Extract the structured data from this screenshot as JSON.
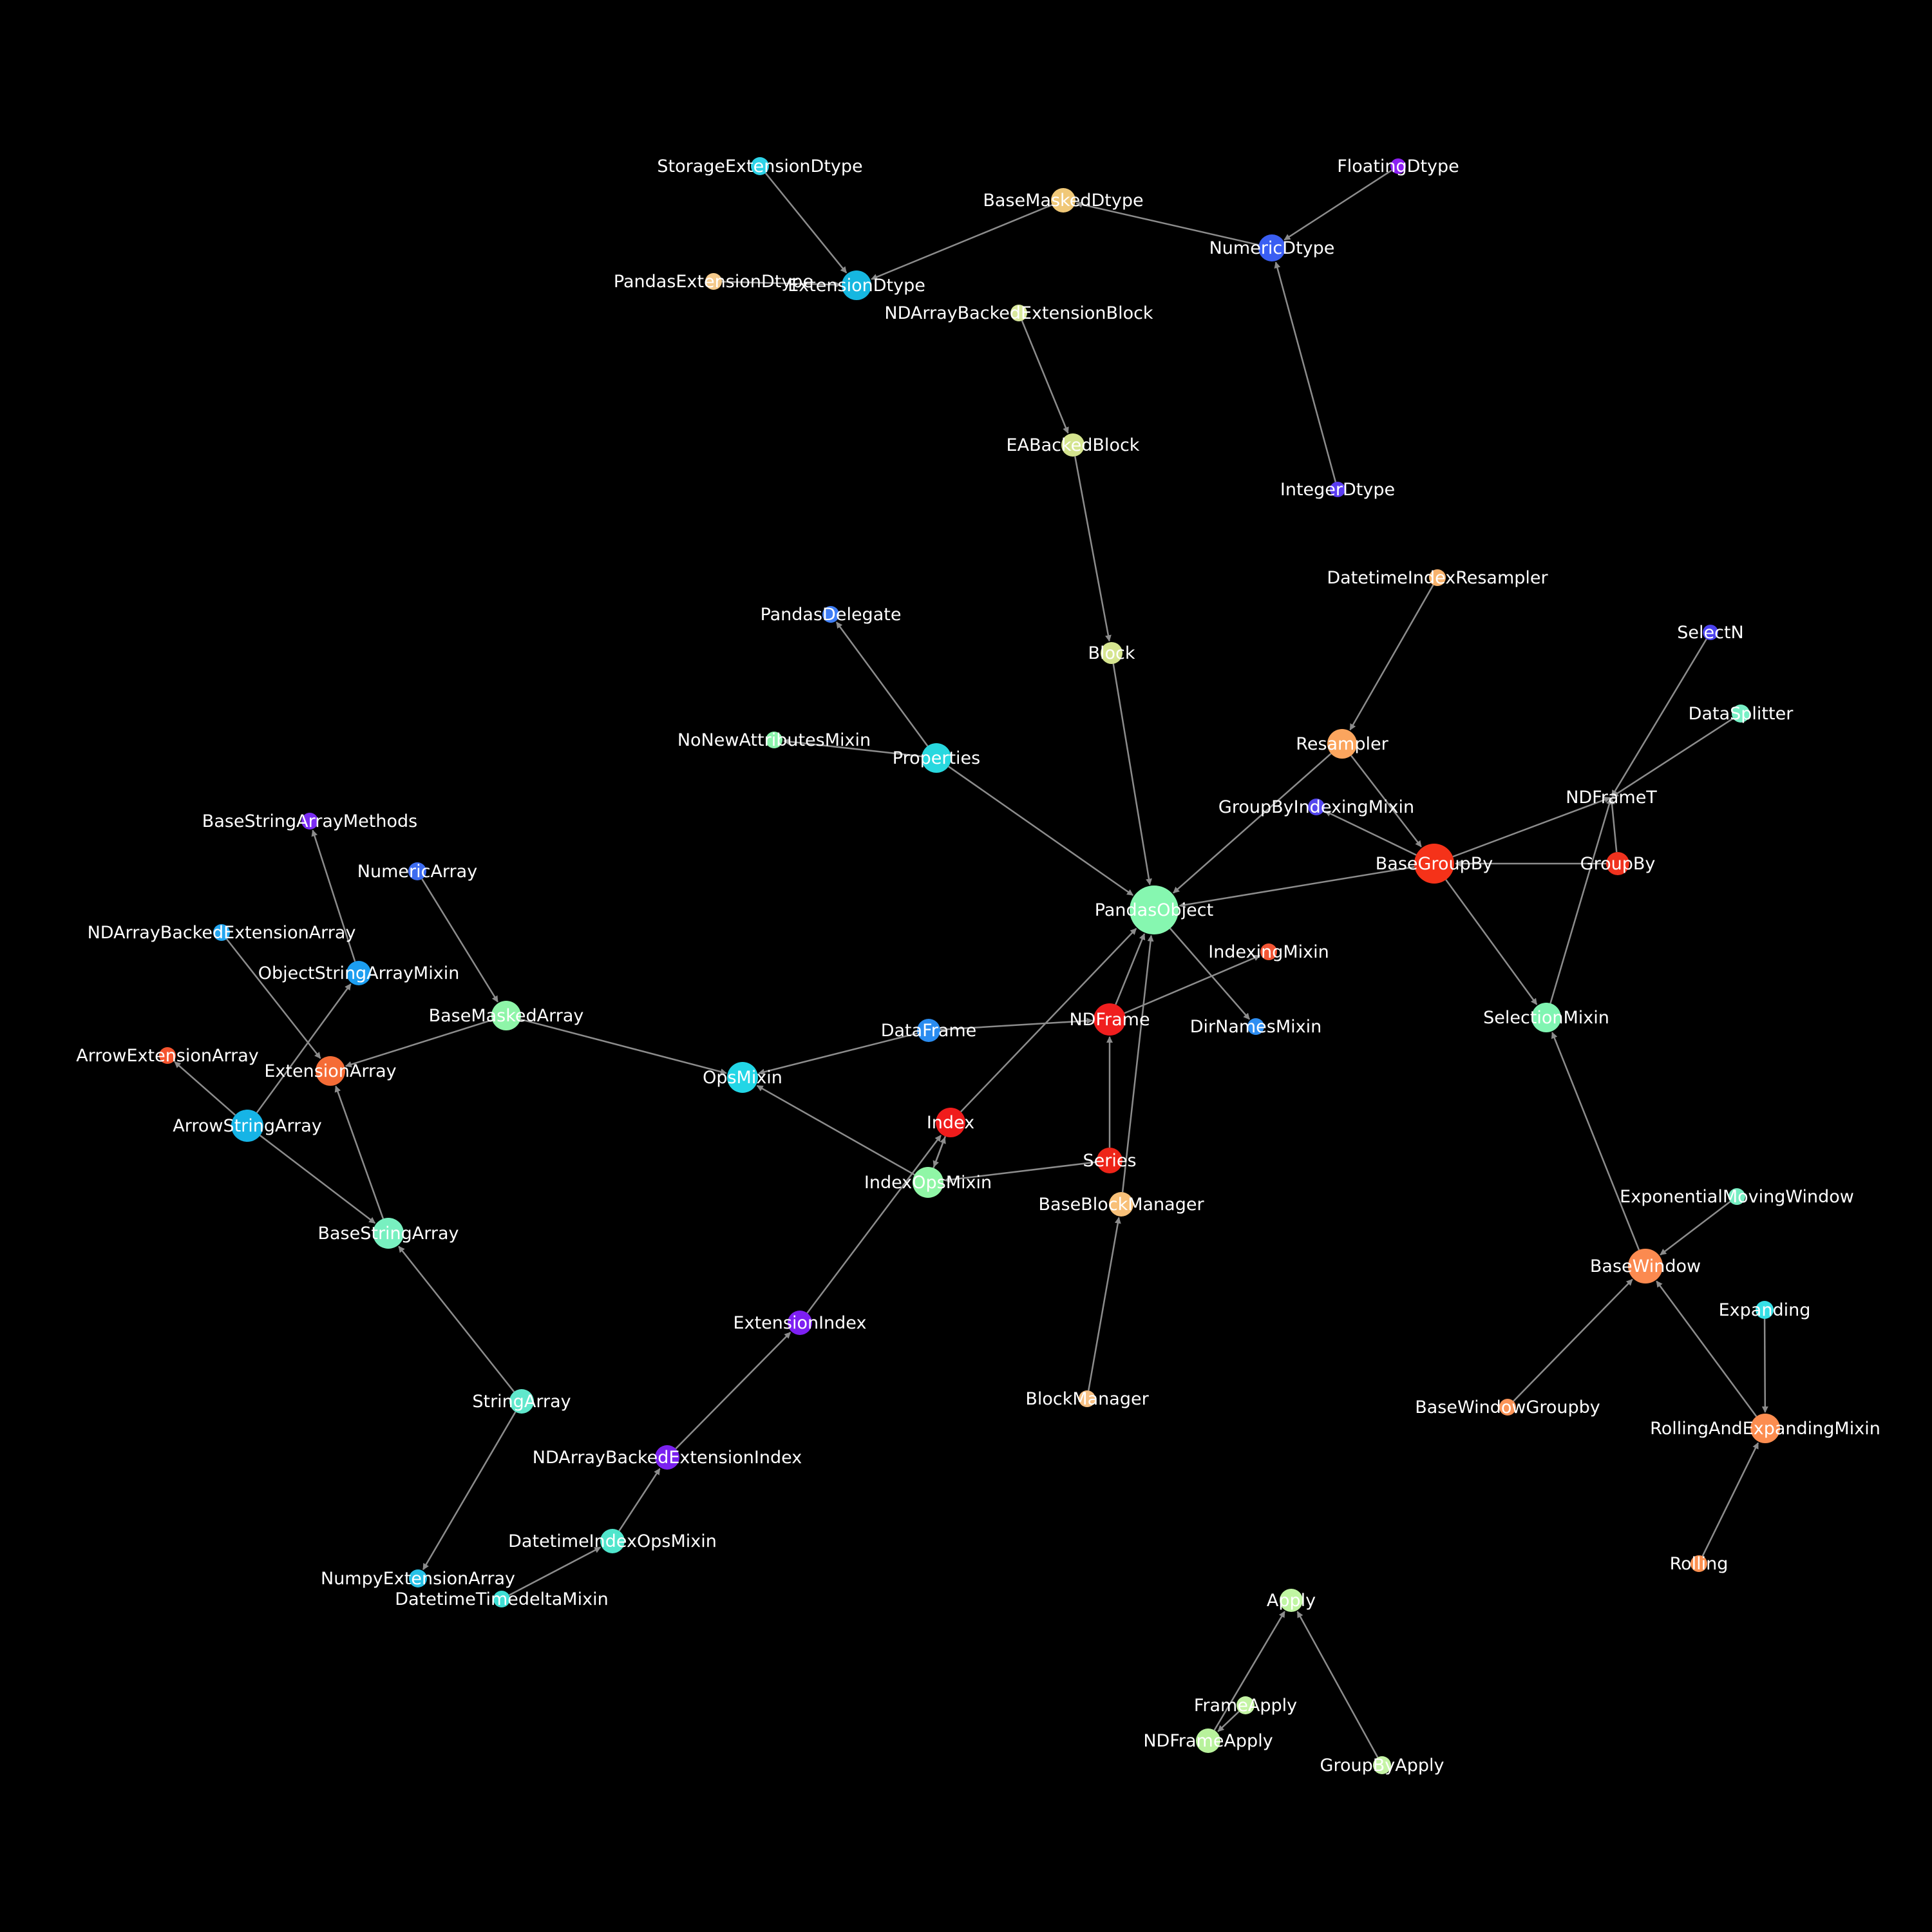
{
  "background": "#000000",
  "edge_color": "#8c8c8c",
  "label_color": "#ffffff",
  "nodes": [
    {
      "id": "StorageExtensionDtype",
      "label": "StorageExtensionDtype",
      "color": "#2ed3e8"
    },
    {
      "id": "BaseMaskedDtype",
      "label": "BaseMaskedDtype",
      "color": "#f0c878"
    },
    {
      "id": "FloatingDtype",
      "label": "FloatingDtype",
      "color": "#8b1ff2"
    },
    {
      "id": "NumericDtype",
      "label": "NumericDtype",
      "color": "#3a5ef2"
    },
    {
      "id": "PandasExtensionDtype",
      "label": "PandasExtensionDtype",
      "color": "#f4c98a"
    },
    {
      "id": "ExtensionDtype",
      "label": "ExtensionDtype",
      "color": "#16b7e0"
    },
    {
      "id": "NDArrayBackedExtensionBlock",
      "label": "NDArrayBackedExtensionBlock",
      "color": "#d9e89c"
    },
    {
      "id": "EABackedBlock",
      "label": "EABackedBlock",
      "color": "#d4e48e"
    },
    {
      "id": "IntegerDtype",
      "label": "IntegerDtype",
      "color": "#5a3cf0"
    },
    {
      "id": "DatetimeIndexResampler",
      "label": "DatetimeIndexResampler",
      "color": "#f8b26c"
    },
    {
      "id": "PandasDelegate",
      "label": "PandasDelegate",
      "color": "#3f7ef5"
    },
    {
      "id": "Block",
      "label": "Block",
      "color": "#d6e58f"
    },
    {
      "id": "SelectN",
      "label": "SelectN",
      "color": "#4b42ef"
    },
    {
      "id": "DataSplitter",
      "label": "DataSplitter",
      "color": "#78f0c6"
    },
    {
      "id": "NoNewAttributesMixin",
      "label": "NoNewAttributesMixin",
      "color": "#8cf5ad"
    },
    {
      "id": "Properties",
      "label": "Properties",
      "color": "#28d8df"
    },
    {
      "id": "Resampler",
      "label": "Resampler",
      "color": "#fba55e"
    },
    {
      "id": "NDFrameT",
      "label": "NDFrameT",
      "color": "#ffffff"
    },
    {
      "id": "GroupByIndexingMixin",
      "label": "GroupByIndexingMixin",
      "color": "#5346ee"
    },
    {
      "id": "BaseGroupBy",
      "label": "BaseGroupBy",
      "color": "#f53219"
    },
    {
      "id": "GroupBy",
      "label": "GroupBy",
      "color": "#f0321e"
    },
    {
      "id": "BaseStringArrayMethods",
      "label": "BaseStringArrayMethods",
      "color": "#7a2cf2"
    },
    {
      "id": "NumericArray",
      "label": "NumericArray",
      "color": "#3d6cf0"
    },
    {
      "id": "PandasObject",
      "label": "PandasObject",
      "color": "#86f7b0"
    },
    {
      "id": "NDArrayBackedExtensionArray",
      "label": "NDArrayBackedExtensionArray",
      "color": "#24a6f0"
    },
    {
      "id": "IndexingMixin",
      "label": "IndexingMixin",
      "color": "#f35534"
    },
    {
      "id": "ObjectStringArrayMixin",
      "label": "ObjectStringArrayMixin",
      "color": "#1c9ef0"
    },
    {
      "id": "BaseMaskedArray",
      "label": "BaseMaskedArray",
      "color": "#8ef5a8"
    },
    {
      "id": "NDFrame",
      "label": "NDFrame",
      "color": "#f01e1e"
    },
    {
      "id": "DirNamesMixin",
      "label": "DirNamesMixin",
      "color": "#2e8ef2"
    },
    {
      "id": "SelectionMixin",
      "label": "SelectionMixin",
      "color": "#80f5b2"
    },
    {
      "id": "DataFrame",
      "label": "DataFrame",
      "color": "#2a8cf0"
    },
    {
      "id": "ArrowExtensionArray",
      "label": "ArrowExtensionArray",
      "color": "#f5542e"
    },
    {
      "id": "ExtensionArray",
      "label": "ExtensionArray",
      "color": "#f56c36"
    },
    {
      "id": "OpsMixin",
      "label": "OpsMixin",
      "color": "#22d6e6"
    },
    {
      "id": "ArrowStringArray",
      "label": "ArrowStringArray",
      "color": "#16b4e6"
    },
    {
      "id": "Index",
      "label": "Index",
      "color": "#f01c1c"
    },
    {
      "id": "Series",
      "label": "Series",
      "color": "#ee2418"
    },
    {
      "id": "IndexOpsMixin",
      "label": "IndexOpsMixin",
      "color": "#90f6a6"
    },
    {
      "id": "BaseBlockManager",
      "label": "BaseBlockManager",
      "color": "#f8c078"
    },
    {
      "id": "ExponentialMovingWindow",
      "label": "ExponentialMovingWindow",
      "color": "#76eec2"
    },
    {
      "id": "BaseStringArray",
      "label": "BaseStringArray",
      "color": "#78f0c0"
    },
    {
      "id": "BaseWindow",
      "label": "BaseWindow",
      "color": "#fb8a50"
    },
    {
      "id": "Expanding",
      "label": "Expanding",
      "color": "#36e0e6"
    },
    {
      "id": "ExtensionIndex",
      "label": "ExtensionIndex",
      "color": "#7d1ff2"
    },
    {
      "id": "StringArray",
      "label": "StringArray",
      "color": "#60e8cc"
    },
    {
      "id": "BlockManager",
      "label": "BlockManager",
      "color": "#f8c184"
    },
    {
      "id": "BaseWindowGroupby",
      "label": "BaseWindowGroupby",
      "color": "#fb9458"
    },
    {
      "id": "RollingAndExpandingMixin",
      "label": "RollingAndExpandingMixin",
      "color": "#fc8d50"
    },
    {
      "id": "NDArrayBackedExtensionIndex",
      "label": "NDArrayBackedExtensionIndex",
      "color": "#7b22f0"
    },
    {
      "id": "DatetimeIndexOpsMixin",
      "label": "DatetimeIndexOpsMixin",
      "color": "#50e6cc"
    },
    {
      "id": "NumpyExtensionArray",
      "label": "NumpyExtensionArray",
      "color": "#28c2e8"
    },
    {
      "id": "DatetimeTimedeltaMixin",
      "label": "DatetimeTimedeltaMixin",
      "color": "#3ee0d6"
    },
    {
      "id": "Rolling",
      "label": "Rolling",
      "color": "#fc9050"
    },
    {
      "id": "Apply",
      "label": "Apply",
      "color": "#c0f5a2"
    },
    {
      "id": "FrameApply",
      "label": "FrameApply",
      "color": "#c4f4a4"
    },
    {
      "id": "NDFrameApply",
      "label": "NDFrameApply",
      "color": "#b8f29c"
    },
    {
      "id": "GroupByApply",
      "label": "GroupByApply",
      "color": "#c6f4a6"
    }
  ],
  "edges": [
    {
      "source": "StorageExtensionDtype",
      "target": "ExtensionDtype"
    },
    {
      "source": "PandasExtensionDtype",
      "target": "ExtensionDtype"
    },
    {
      "source": "BaseMaskedDtype",
      "target": "ExtensionDtype"
    },
    {
      "source": "NumericDtype",
      "target": "BaseMaskedDtype"
    },
    {
      "source": "FloatingDtype",
      "target": "NumericDtype"
    },
    {
      "source": "IntegerDtype",
      "target": "NumericDtype"
    },
    {
      "source": "NDArrayBackedExtensionBlock",
      "target": "EABackedBlock"
    },
    {
      "source": "EABackedBlock",
      "target": "Block"
    },
    {
      "source": "Block",
      "target": "PandasObject"
    },
    {
      "source": "Properties",
      "target": "PandasDelegate"
    },
    {
      "source": "Properties",
      "target": "NoNewAttributesMixin"
    },
    {
      "source": "Properties",
      "target": "PandasObject"
    },
    {
      "source": "DatetimeIndexResampler",
      "target": "Resampler"
    },
    {
      "source": "Resampler",
      "target": "BaseGroupBy"
    },
    {
      "source": "Resampler",
      "target": "PandasObject"
    },
    {
      "source": "SelectN",
      "target": "NDFrameT"
    },
    {
      "source": "DataSplitter",
      "target": "NDFrameT"
    },
    {
      "source": "BaseGroupBy",
      "target": "NDFrameT"
    },
    {
      "source": "BaseGroupBy",
      "target": "GroupByIndexingMixin"
    },
    {
      "source": "BaseGroupBy",
      "target": "PandasObject"
    },
    {
      "source": "BaseGroupBy",
      "target": "SelectionMixin"
    },
    {
      "source": "GroupBy",
      "target": "BaseGroupBy"
    },
    {
      "source": "GroupBy",
      "target": "NDFrameT"
    },
    {
      "source": "SelectionMixin",
      "target": "NDFrameT"
    },
    {
      "source": "NDFrame",
      "target": "PandasObject"
    },
    {
      "source": "NDFrame",
      "target": "IndexingMixin"
    },
    {
      "source": "PandasObject",
      "target": "DirNamesMixin"
    },
    {
      "source": "DataFrame",
      "target": "NDFrame"
    },
    {
      "source": "DataFrame",
      "target": "OpsMixin"
    },
    {
      "source": "Series",
      "target": "NDFrame"
    },
    {
      "source": "Series",
      "target": "IndexOpsMixin"
    },
    {
      "source": "Index",
      "target": "PandasObject"
    },
    {
      "source": "Index",
      "target": "IndexOpsMixin"
    },
    {
      "source": "IndexOpsMixin",
      "target": "Index"
    },
    {
      "source": "IndexOpsMixin",
      "target": "OpsMixin"
    },
    {
      "source": "BaseBlockManager",
      "target": "PandasObject"
    },
    {
      "source": "BlockManager",
      "target": "BaseBlockManager"
    },
    {
      "source": "ExtensionIndex",
      "target": "Index"
    },
    {
      "source": "NDArrayBackedExtensionIndex",
      "target": "ExtensionIndex"
    },
    {
      "source": "DatetimeIndexOpsMixin",
      "target": "NDArrayBackedExtensionIndex"
    },
    {
      "source": "DatetimeTimedeltaMixin",
      "target": "DatetimeIndexOpsMixin"
    },
    {
      "source": "NumericArray",
      "target": "BaseMaskedArray"
    },
    {
      "source": "BaseMaskedArray",
      "target": "ExtensionArray"
    },
    {
      "source": "BaseMaskedArray",
      "target": "OpsMixin"
    },
    {
      "source": "NDArrayBackedExtensionArray",
      "target": "ExtensionArray"
    },
    {
      "source": "ObjectStringArrayMixin",
      "target": "BaseStringArrayMethods"
    },
    {
      "source": "ArrowStringArray",
      "target": "ObjectStringArrayMixin"
    },
    {
      "source": "ArrowStringArray",
      "target": "ArrowExtensionArray"
    },
    {
      "source": "ArrowStringArray",
      "target": "BaseStringArray"
    },
    {
      "source": "BaseStringArray",
      "target": "ExtensionArray"
    },
    {
      "source": "StringArray",
      "target": "BaseStringArray"
    },
    {
      "source": "StringArray",
      "target": "NumpyExtensionArray"
    },
    {
      "source": "SelectionMixin",
      "target": "SelectionMixin"
    },
    {
      "source": "BaseWindow",
      "target": "SelectionMixin"
    },
    {
      "source": "ExponentialMovingWindow",
      "target": "BaseWindow"
    },
    {
      "source": "BaseWindowGroupby",
      "target": "BaseWindow"
    },
    {
      "source": "RollingAndExpandingMixin",
      "target": "BaseWindow"
    },
    {
      "source": "Expanding",
      "target": "RollingAndExpandingMixin"
    },
    {
      "source": "Rolling",
      "target": "RollingAndExpandingMixin"
    },
    {
      "source": "FrameApply",
      "target": "NDFrameApply"
    },
    {
      "source": "NDFrameApply",
      "target": "Apply"
    },
    {
      "source": "GroupByApply",
      "target": "Apply"
    }
  ]
}
